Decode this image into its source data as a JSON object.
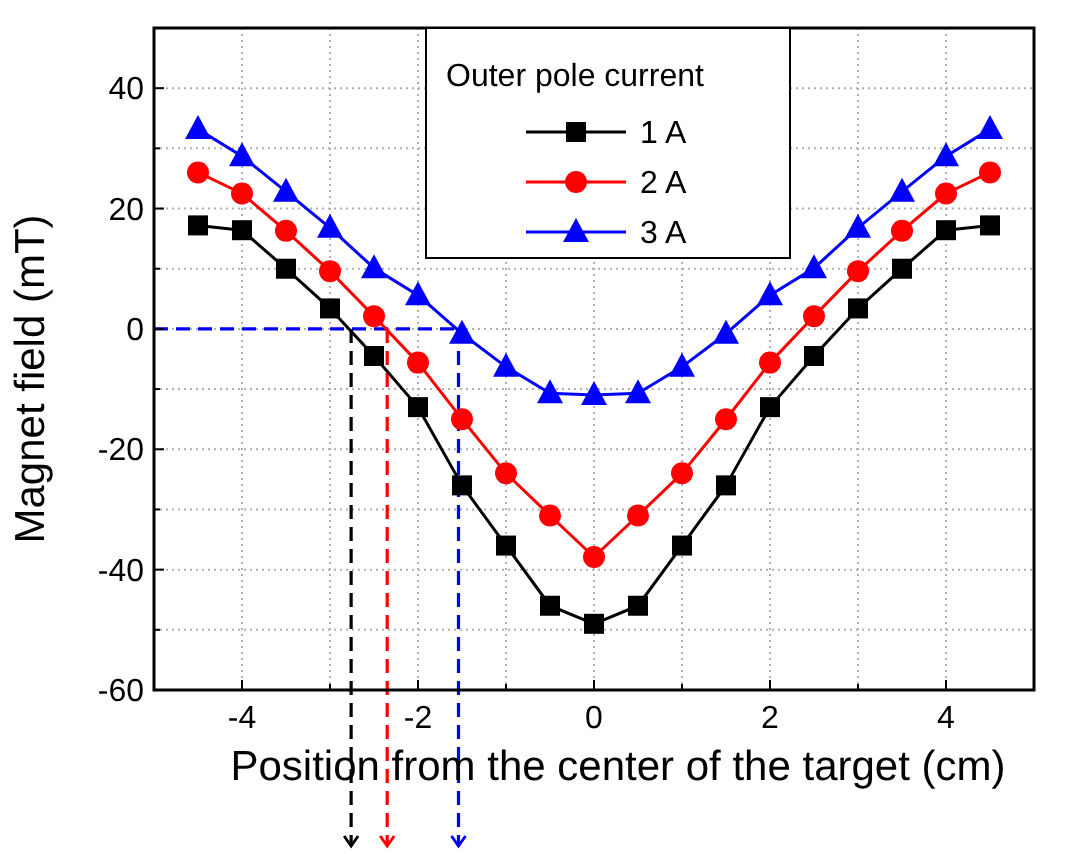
{
  "chart_data": {
    "type": "line",
    "xlabel": "Position from the center of the target (cm)",
    "ylabel": "Magnet field (mT)",
    "legend_title": "Outer pole current",
    "legend": "top",
    "grid": true,
    "line_style": "solid",
    "x": [
      -4.5,
      -4,
      -3.5,
      -3,
      -2.5,
      -2,
      -1.5,
      -1,
      -0.5,
      0,
      0.5,
      1,
      1.5,
      2,
      2.5,
      3,
      3.5,
      4,
      4.5
    ],
    "xlim": [
      -5,
      5
    ],
    "xticks": [
      {
        "value": -5,
        "label": null
      },
      -4,
      {
        "value": -3,
        "label": null
      },
      -2,
      {
        "value": -1,
        "label": null
      },
      0,
      {
        "value": 1,
        "label": null
      },
      2,
      {
        "value": 3,
        "label": null
      },
      4,
      {
        "value": 5,
        "label": null
      }
    ],
    "ylim": [
      -60,
      50
    ],
    "yticks": [
      -60,
      {
        "value": -50,
        "label": null
      },
      -40,
      {
        "value": -30,
        "label": null
      },
      -20,
      {
        "value": -10,
        "label": null
      },
      0,
      {
        "value": 10,
        "label": null
      },
      20,
      {
        "value": 30,
        "label": null
      },
      40,
      {
        "value": 50,
        "label": null
      }
    ],
    "series": [
      {
        "name": "1 A",
        "color": "#000000",
        "marker": "square",
        "values": [
          17.2,
          16.4,
          10,
          3.4,
          -4.5,
          -13,
          -26,
          -36,
          -46,
          -49,
          -46,
          -36,
          -26,
          -13,
          -4.5,
          3.4,
          10,
          16.4,
          17.2
        ]
      },
      {
        "name": "2 A",
        "color": "#ff0000",
        "marker": "circle",
        "values": [
          26,
          22.5,
          16.3,
          9.6,
          2.1,
          -5.6,
          -15,
          -24,
          -31,
          -37.9,
          -31,
          -24,
          -15,
          -5.6,
          2.1,
          9.6,
          16.3,
          22.5,
          26
        ]
      },
      {
        "name": "3 A",
        "color": "#0000ff",
        "marker": "triangle",
        "values": [
          33.2,
          28.7,
          22.8,
          16.8,
          10.1,
          5.6,
          -0.8,
          -6.3,
          -10.7,
          -11,
          -10.7,
          -6.3,
          -0.8,
          5.6,
          10.1,
          16.8,
          22.8,
          28.7,
          33.2
        ]
      }
    ],
    "ref_lines": [
      {
        "axis": "y",
        "value": 0,
        "color": "#0000ff",
        "line_style": "dashed"
      },
      {
        "axis": "x",
        "value": -2.76,
        "color": "#000000",
        "line_style": "dashed"
      },
      {
        "axis": "x",
        "value": -2.35,
        "color": "#ff0000",
        "line_style": "dashed"
      },
      {
        "axis": "x",
        "value": -1.54,
        "color": "#0000ff",
        "line_style": "dashed"
      }
    ]
  }
}
